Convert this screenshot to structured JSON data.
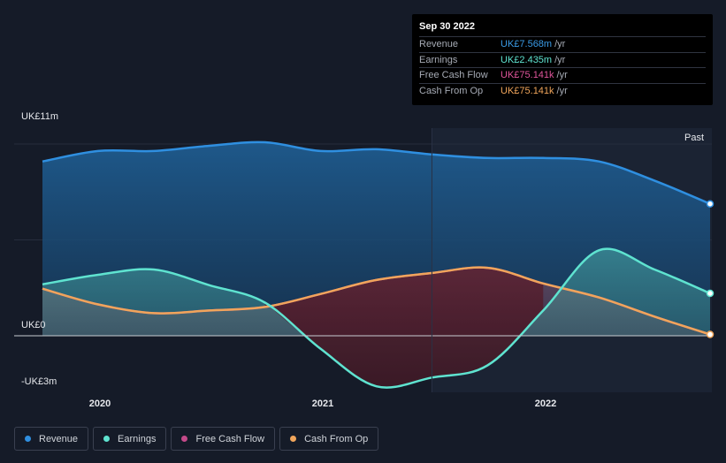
{
  "tooltip": {
    "date": "Sep 30 2022",
    "rows": [
      {
        "label": "Revenue",
        "value": "UK£7.568m",
        "unit": "/yr",
        "color": "#3a9be6"
      },
      {
        "label": "Earnings",
        "value": "UK£2.435m",
        "unit": "/yr",
        "color": "#5fe3d0"
      },
      {
        "label": "Free Cash Flow",
        "value": "UK£75.141k",
        "unit": "/yr",
        "color": "#e0559b"
      },
      {
        "label": "Cash From Op",
        "value": "UK£75.141k",
        "unit": "/yr",
        "color": "#f0a55b"
      }
    ]
  },
  "past_label": "Past",
  "legend": [
    {
      "label": "Revenue",
      "color": "#2f8fe0"
    },
    {
      "label": "Earnings",
      "color": "#5fe3d0"
    },
    {
      "label": "Free Cash Flow",
      "color": "#c44a8a"
    },
    {
      "label": "Cash From Op",
      "color": "#f0a55b"
    }
  ],
  "chart_data": {
    "type": "area",
    "y_tick_labels": [
      "UK£11m",
      "UK£0",
      "-UK£3m"
    ],
    "x_tick_labels": [
      "2020",
      "2021",
      "2022"
    ],
    "ylim": [
      -3.0,
      11.0
    ],
    "xlim": [
      2019.75,
      2022.75
    ],
    "y_unit": "UK£m",
    "series": [
      {
        "name": "Revenue",
        "color": "#2f8fe0",
        "x": [
          2019.75,
          2020.0,
          2020.25,
          2020.5,
          2020.75,
          2021.0,
          2021.25,
          2021.5,
          2021.75,
          2022.0,
          2022.25,
          2022.5,
          2022.75
        ],
        "y": [
          10.0,
          10.6,
          10.6,
          10.9,
          11.1,
          10.6,
          10.7,
          10.4,
          10.2,
          10.2,
          10.0,
          8.9,
          7.568
        ]
      },
      {
        "name": "Earnings",
        "color": "#5fe3d0",
        "x": [
          2019.75,
          2020.0,
          2020.25,
          2020.5,
          2020.75,
          2021.0,
          2021.25,
          2021.5,
          2021.75,
          2022.0,
          2022.25,
          2022.5,
          2022.75
        ],
        "y": [
          2.95,
          3.5,
          3.8,
          2.9,
          1.9,
          -0.75,
          -2.9,
          -2.4,
          -1.7,
          1.45,
          4.9,
          3.8,
          2.435
        ]
      },
      {
        "name": "Free Cash Flow",
        "color": "#c44a8a",
        "x": [
          2019.75,
          2020.0,
          2020.25,
          2020.5,
          2020.75,
          2021.0,
          2021.25,
          2021.5,
          2021.75,
          2022.0,
          2022.25,
          2022.5,
          2022.75
        ],
        "y": [
          2.7,
          1.8,
          1.3,
          1.45,
          1.65,
          2.4,
          3.2,
          3.6,
          3.9,
          3.0,
          2.2,
          1.1,
          0.075
        ]
      },
      {
        "name": "Cash From Op",
        "color": "#f0a55b",
        "x": [
          2019.75,
          2020.0,
          2020.25,
          2020.5,
          2020.75,
          2021.0,
          2021.25,
          2021.5,
          2021.75,
          2022.0,
          2022.25,
          2022.5,
          2022.75
        ],
        "y": [
          2.7,
          1.8,
          1.3,
          1.45,
          1.65,
          2.4,
          3.2,
          3.6,
          3.9,
          3.0,
          2.2,
          1.1,
          0.075
        ]
      }
    ],
    "forecast_start": 2021.5
  }
}
